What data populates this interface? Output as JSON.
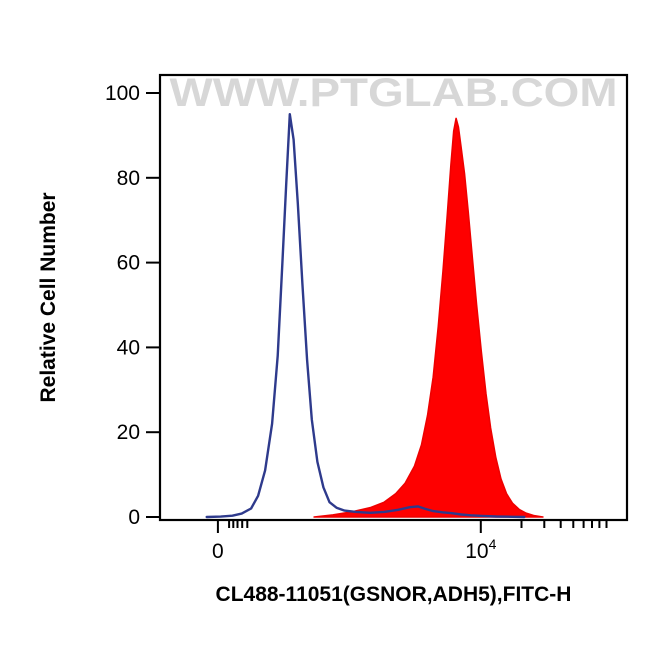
{
  "watermark": "WWW.PTGLAB.COM",
  "watermark_color": "#d7d7d7",
  "frame_color": "#000000",
  "chart_data": {
    "type": "area",
    "title": "",
    "xlabel": "CL488-11051(GSNOR,ADH5),FITC-H",
    "ylabel": "Relative Cell Number",
    "x_scale": "logicle",
    "ylim": [
      0,
      100
    ],
    "y_ticks": [
      0,
      20,
      40,
      60,
      80,
      100
    ],
    "x_ticks": [
      {
        "base": "0",
        "exp": "",
        "pos": 0.124
      },
      {
        "base": "10",
        "exp": "4",
        "pos": 0.687
      }
    ],
    "x_minor_ticks": [
      0.148,
      0.157,
      0.166,
      0.176,
      0.187,
      0.774,
      0.823,
      0.858,
      0.885,
      0.907,
      0.925,
      0.941,
      0.956
    ],
    "legend": "off",
    "grid": "off",
    "series": [
      {
        "name": "CL488-11051 stained sample (filled red histogram)",
        "style": "filled",
        "stroke": "#ee0000",
        "fill": "#fe0000",
        "peak_value": 94,
        "points": [
          [
            0.33,
            0
          ],
          [
            0.37,
            0.5
          ],
          [
            0.41,
            1.2
          ],
          [
            0.45,
            2.2
          ],
          [
            0.48,
            3.5
          ],
          [
            0.505,
            5.5
          ],
          [
            0.525,
            8
          ],
          [
            0.545,
            12
          ],
          [
            0.56,
            17
          ],
          [
            0.573,
            24
          ],
          [
            0.585,
            33
          ],
          [
            0.596,
            45
          ],
          [
            0.606,
            58
          ],
          [
            0.615,
            71
          ],
          [
            0.623,
            83
          ],
          [
            0.629,
            91
          ],
          [
            0.634,
            94
          ],
          [
            0.639,
            92
          ],
          [
            0.645,
            87
          ],
          [
            0.652,
            81
          ],
          [
            0.66,
            72
          ],
          [
            0.669,
            61
          ],
          [
            0.678,
            50
          ],
          [
            0.688,
            39
          ],
          [
            0.698,
            29
          ],
          [
            0.708,
            21
          ],
          [
            0.719,
            14
          ],
          [
            0.73,
            9
          ],
          [
            0.742,
            5.5
          ],
          [
            0.755,
            3.2
          ],
          [
            0.769,
            1.8
          ],
          [
            0.784,
            0.9
          ],
          [
            0.8,
            0.35
          ],
          [
            0.82,
            0
          ]
        ]
      },
      {
        "name": "Unstained control (open navy histogram)",
        "style": "line",
        "stroke": "#2e3a8c",
        "fill": "none",
        "peak_value": 95,
        "points": [
          [
            0.1,
            0
          ],
          [
            0.13,
            0.1
          ],
          [
            0.155,
            0.3
          ],
          [
            0.175,
            0.8
          ],
          [
            0.195,
            2
          ],
          [
            0.21,
            5
          ],
          [
            0.225,
            11
          ],
          [
            0.24,
            22
          ],
          [
            0.252,
            38
          ],
          [
            0.262,
            60
          ],
          [
            0.27,
            78
          ],
          [
            0.278,
            95
          ],
          [
            0.286,
            89
          ],
          [
            0.295,
            74
          ],
          [
            0.305,
            55
          ],
          [
            0.315,
            37
          ],
          [
            0.325,
            23
          ],
          [
            0.337,
            13
          ],
          [
            0.35,
            7
          ],
          [
            0.363,
            3.5
          ],
          [
            0.378,
            2.2
          ],
          [
            0.395,
            1.5
          ],
          [
            0.42,
            1.2
          ],
          [
            0.45,
            1.0
          ],
          [
            0.48,
            1.2
          ],
          [
            0.51,
            1.7
          ],
          [
            0.535,
            2.3
          ],
          [
            0.552,
            2.5
          ],
          [
            0.568,
            1.9
          ],
          [
            0.585,
            1.4
          ],
          [
            0.605,
            1.1
          ],
          [
            0.625,
            0.9
          ],
          [
            0.645,
            0.6
          ],
          [
            0.665,
            0.4
          ],
          [
            0.69,
            0.25
          ],
          [
            0.72,
            0.12
          ],
          [
            0.755,
            0.05
          ],
          [
            0.78,
            0
          ]
        ]
      }
    ]
  }
}
